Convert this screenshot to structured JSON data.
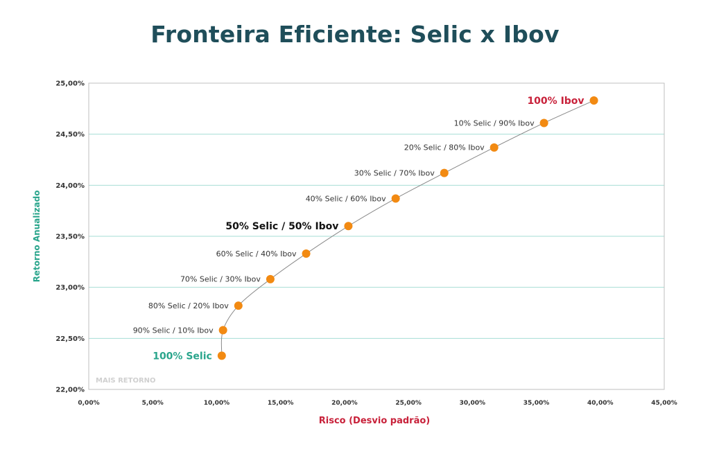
{
  "chart_data": {
    "type": "scatter",
    "title": "Fronteira Eficiente: Selic x Ibov",
    "xlabel": "Risco (Desvio padrão)",
    "ylabel": "Retorno Anualizado",
    "xlim": [
      0,
      45
    ],
    "ylim": [
      22,
      25
    ],
    "x_ticks": [
      0,
      5,
      10,
      15,
      20,
      25,
      30,
      35,
      40,
      45
    ],
    "x_tick_labels": [
      "0,00%",
      "5,00%",
      "10,00%",
      "15,00%",
      "20,00%",
      "25,00%",
      "30,00%",
      "35,00%",
      "40,00%",
      "45,00%"
    ],
    "y_ticks": [
      22,
      22.5,
      23,
      23.5,
      24,
      24.5,
      25
    ],
    "y_tick_labels": [
      "22,00%",
      "22,50%",
      "23,00%",
      "23,50%",
      "24,00%",
      "24,50%",
      "25,00%"
    ],
    "grid": "horizontal",
    "watermark": "MAIS RETORNO",
    "points": [
      {
        "label": "100% Selic",
        "x": 10.4,
        "y": 22.33,
        "emphasis": "selic"
      },
      {
        "label": "90% Selic / 10% Ibov",
        "x": 10.5,
        "y": 22.58
      },
      {
        "label": "80% Selic / 20% Ibov",
        "x": 11.7,
        "y": 22.82
      },
      {
        "label": "70% Selic / 30% Ibov",
        "x": 14.2,
        "y": 23.08
      },
      {
        "label": "60% Selic / 40% Ibov",
        "x": 17.0,
        "y": 23.33
      },
      {
        "label": "50% Selic / 50% Ibov",
        "x": 20.3,
        "y": 23.6,
        "emphasis": "bold"
      },
      {
        "label": "40% Selic / 60% Ibov",
        "x": 24.0,
        "y": 23.87
      },
      {
        "label": "30% Selic / 70% Ibov",
        "x": 27.8,
        "y": 24.12
      },
      {
        "label": "20% Selic / 80% Ibov",
        "x": 31.7,
        "y": 24.37
      },
      {
        "label": "10% Selic / 90% Ibov",
        "x": 35.6,
        "y": 24.61
      },
      {
        "label": "100% Ibov",
        "x": 39.5,
        "y": 24.83,
        "emphasis": "ibov"
      }
    ]
  },
  "colors": {
    "title": "#1f4e5a",
    "marker": "#f28a12",
    "line": "#888888",
    "grid": "#a6ddd4",
    "ylabel": "#2aa58c",
    "xlabel": "#c8213a",
    "selic_label": "#2aa58c",
    "ibov_label": "#c8213a",
    "bold_label": "#111111"
  }
}
